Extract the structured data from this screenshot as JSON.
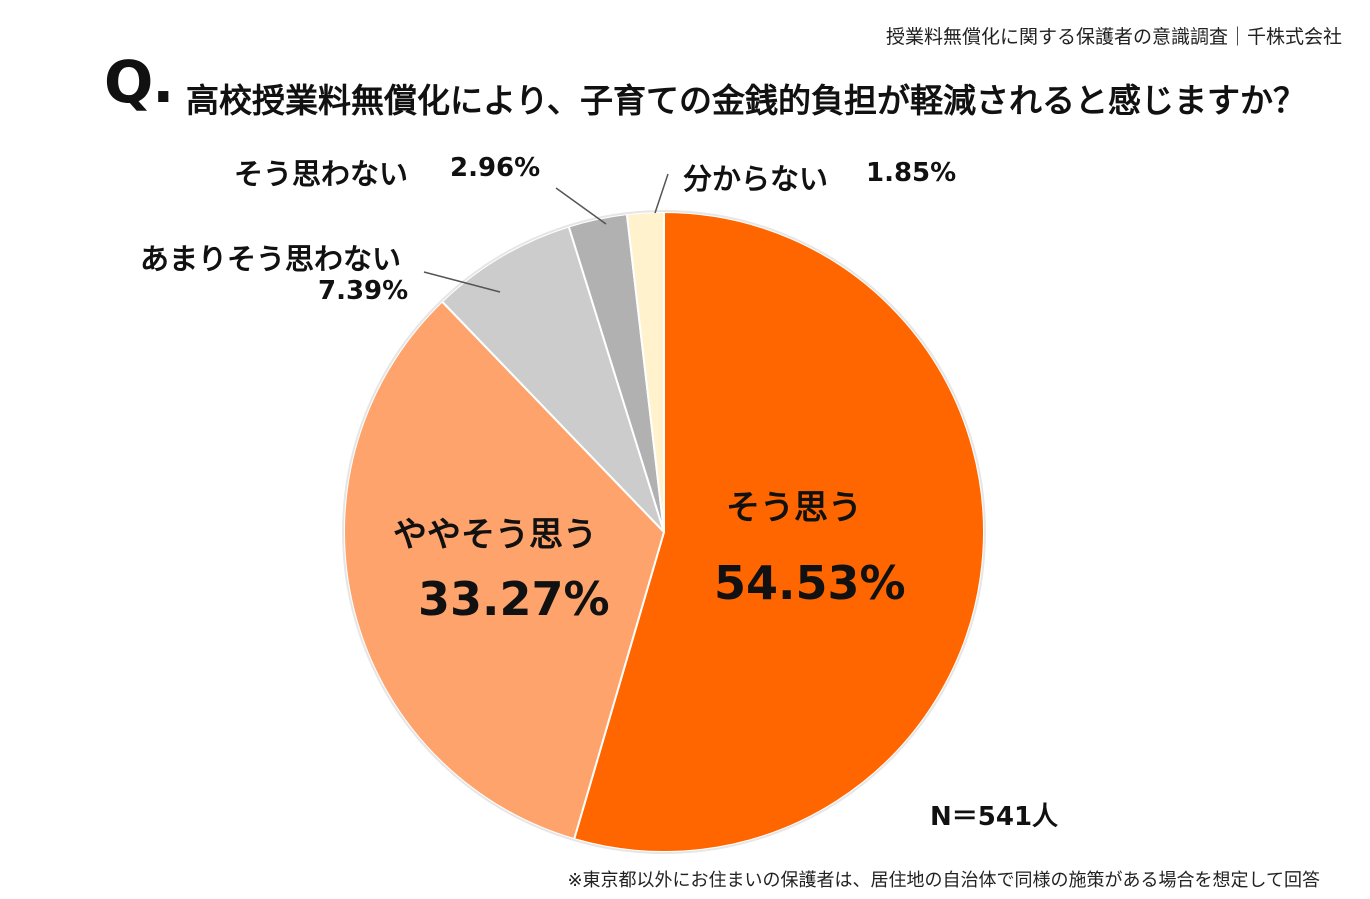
{
  "source": "授業料無償化に関する保護者の意識調査｜千株式会社",
  "question": {
    "prefix": "Q.",
    "text": "高校授業料無償化により、子育ての金銭的負担が軽減されると感じますか？"
  },
  "chart_data": {
    "type": "pie",
    "title": "高校授業料無償化により、子育ての金銭的負担が軽減されると感じますか？",
    "start": "12 o'clock, clockwise",
    "slices": [
      {
        "label": "そう思う",
        "value": 54.53,
        "value_text": "54.53%",
        "color": "#ff6600"
      },
      {
        "label": "ややそう思う",
        "value": 33.27,
        "value_text": "33.27%",
        "color": "#fea36b"
      },
      {
        "label": "あまりそう思わない",
        "value": 7.39,
        "value_text": "7.39%",
        "color": "#cccccc"
      },
      {
        "label": "そう思わない",
        "value": 2.96,
        "value_text": "2.96%",
        "color": "#b1b1b1"
      },
      {
        "label": "分からない",
        "value": 1.85,
        "value_text": "1.85%",
        "color": "#fff2cc"
      }
    ],
    "n": "N＝541人"
  },
  "footnote": "※東京都以外にお住まいの保護者は、居住地の自治体で同様の施策がある場合を想定して回答"
}
